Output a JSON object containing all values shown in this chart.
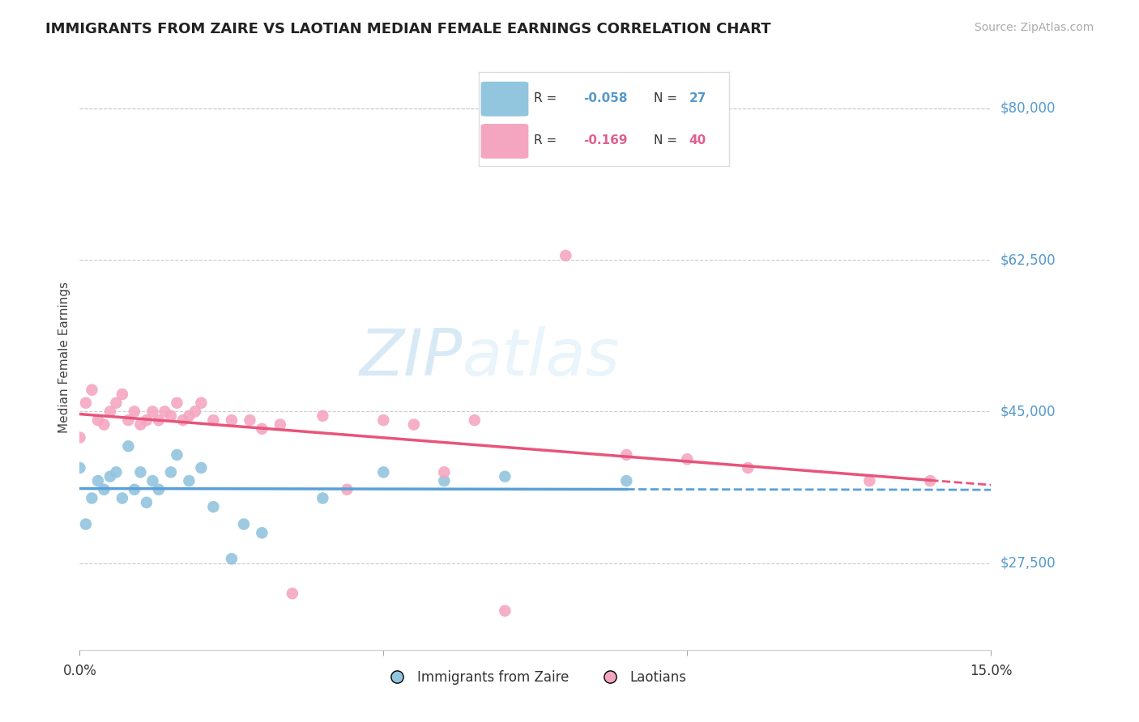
{
  "title": "IMMIGRANTS FROM ZAIRE VS LAOTIAN MEDIAN FEMALE EARNINGS CORRELATION CHART",
  "source": "Source: ZipAtlas.com",
  "ylabel": "Median Female Earnings",
  "yticks": [
    27500,
    45000,
    62500,
    80000
  ],
  "ytick_labels": [
    "$27,500",
    "$45,000",
    "$62,500",
    "$80,000"
  ],
  "legend_label1": "Immigrants from Zaire",
  "legend_label2": "Laotians",
  "legend_R1": "-0.058",
  "legend_N1": "27",
  "legend_R2": "-0.169",
  "legend_N2": "40",
  "watermark_zip": "ZIP",
  "watermark_atlas": "atlas",
  "xmin": 0.0,
  "xmax": 0.15,
  "ymin": 17500,
  "ymax": 85000,
  "color_blue": "#92c5de",
  "color_pink": "#f4a6c0",
  "color_blue_line": "#5aa0d8",
  "color_pink_line": "#e8547a",
  "color_blue_text": "#5599cc",
  "color_pink_text": "#e06090",
  "color_ytick": "#5599cc",
  "zaire_x": [
    0.0,
    0.001,
    0.002,
    0.003,
    0.004,
    0.005,
    0.006,
    0.007,
    0.008,
    0.009,
    0.01,
    0.011,
    0.012,
    0.013,
    0.015,
    0.016,
    0.018,
    0.02,
    0.022,
    0.025,
    0.027,
    0.03,
    0.04,
    0.05,
    0.06,
    0.07,
    0.09
  ],
  "zaire_y": [
    38500,
    32000,
    35000,
    37000,
    36000,
    37500,
    38000,
    35000,
    41000,
    36000,
    38000,
    34500,
    37000,
    36000,
    38000,
    40000,
    37000,
    38500,
    34000,
    28000,
    32000,
    31000,
    35000,
    38000,
    37000,
    37500,
    37000
  ],
  "laotian_x": [
    0.0,
    0.001,
    0.002,
    0.003,
    0.004,
    0.005,
    0.006,
    0.007,
    0.008,
    0.009,
    0.01,
    0.011,
    0.012,
    0.013,
    0.014,
    0.015,
    0.016,
    0.017,
    0.018,
    0.019,
    0.02,
    0.022,
    0.025,
    0.028,
    0.03,
    0.033,
    0.035,
    0.04,
    0.044,
    0.05,
    0.055,
    0.06,
    0.065,
    0.07,
    0.08,
    0.09,
    0.1,
    0.11,
    0.13,
    0.14
  ],
  "laotian_y": [
    42000,
    46000,
    47500,
    44000,
    43500,
    45000,
    46000,
    47000,
    44000,
    45000,
    43500,
    44000,
    45000,
    44000,
    45000,
    44500,
    46000,
    44000,
    44500,
    45000,
    46000,
    44000,
    44000,
    44000,
    43000,
    43500,
    24000,
    44500,
    36000,
    44000,
    43500,
    38000,
    44000,
    22000,
    63000,
    40000,
    39500,
    38500,
    37000,
    37000
  ]
}
